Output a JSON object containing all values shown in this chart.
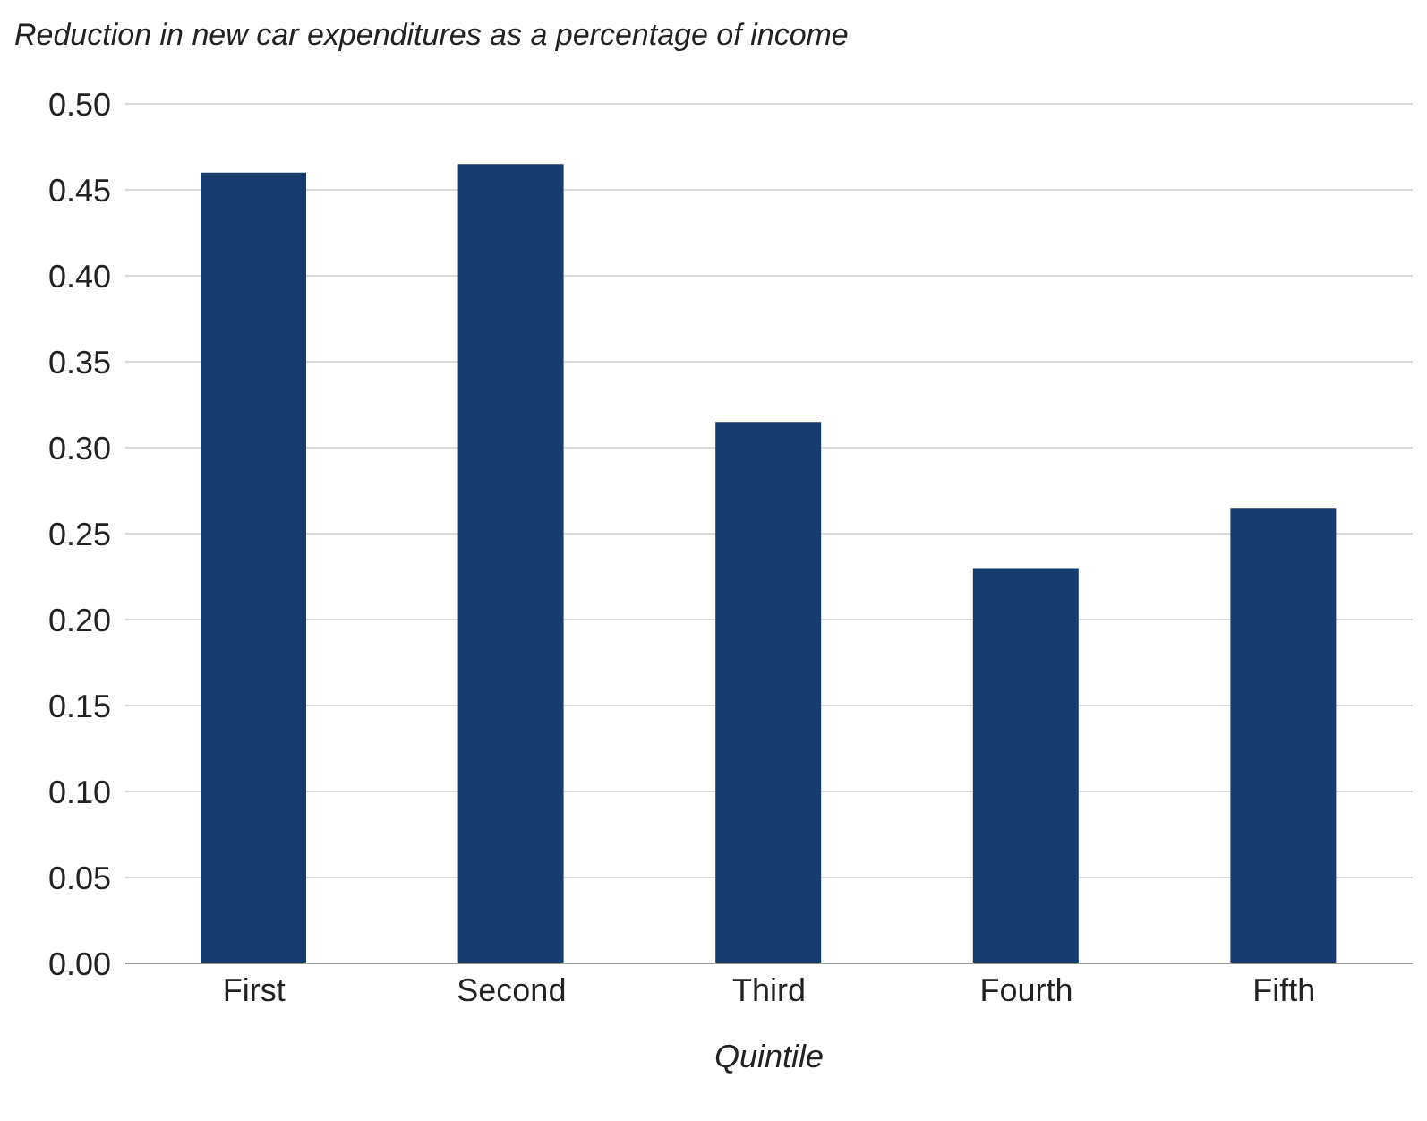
{
  "chart_data": {
    "type": "bar",
    "title": "Reduction in new car expenditures as a percentage of income",
    "xlabel": "Quintile",
    "categories": [
      "First",
      "Second",
      "Third",
      "Fourth",
      "Fifth"
    ],
    "values": [
      0.46,
      0.465,
      0.315,
      0.23,
      0.265
    ],
    "color": "#173d6e",
    "ylim": [
      0,
      0.5
    ],
    "yticks": [
      {
        "value": 0,
        "label": "0.00"
      },
      {
        "value": 0.05,
        "label": "0.05"
      },
      {
        "value": 0.1,
        "label": "0.10"
      },
      {
        "value": 0.15,
        "label": "0.15"
      },
      {
        "value": 0.2,
        "label": "0.20"
      },
      {
        "value": 0.25,
        "label": "0.25"
      },
      {
        "value": 0.3,
        "label": "0.30"
      },
      {
        "value": 0.35,
        "label": "0.35"
      },
      {
        "value": 0.4,
        "label": "0.40"
      },
      {
        "value": 0.45,
        "label": "0.45"
      },
      {
        "value": 0.5,
        "label": "0.50"
      }
    ],
    "grid": "y"
  }
}
